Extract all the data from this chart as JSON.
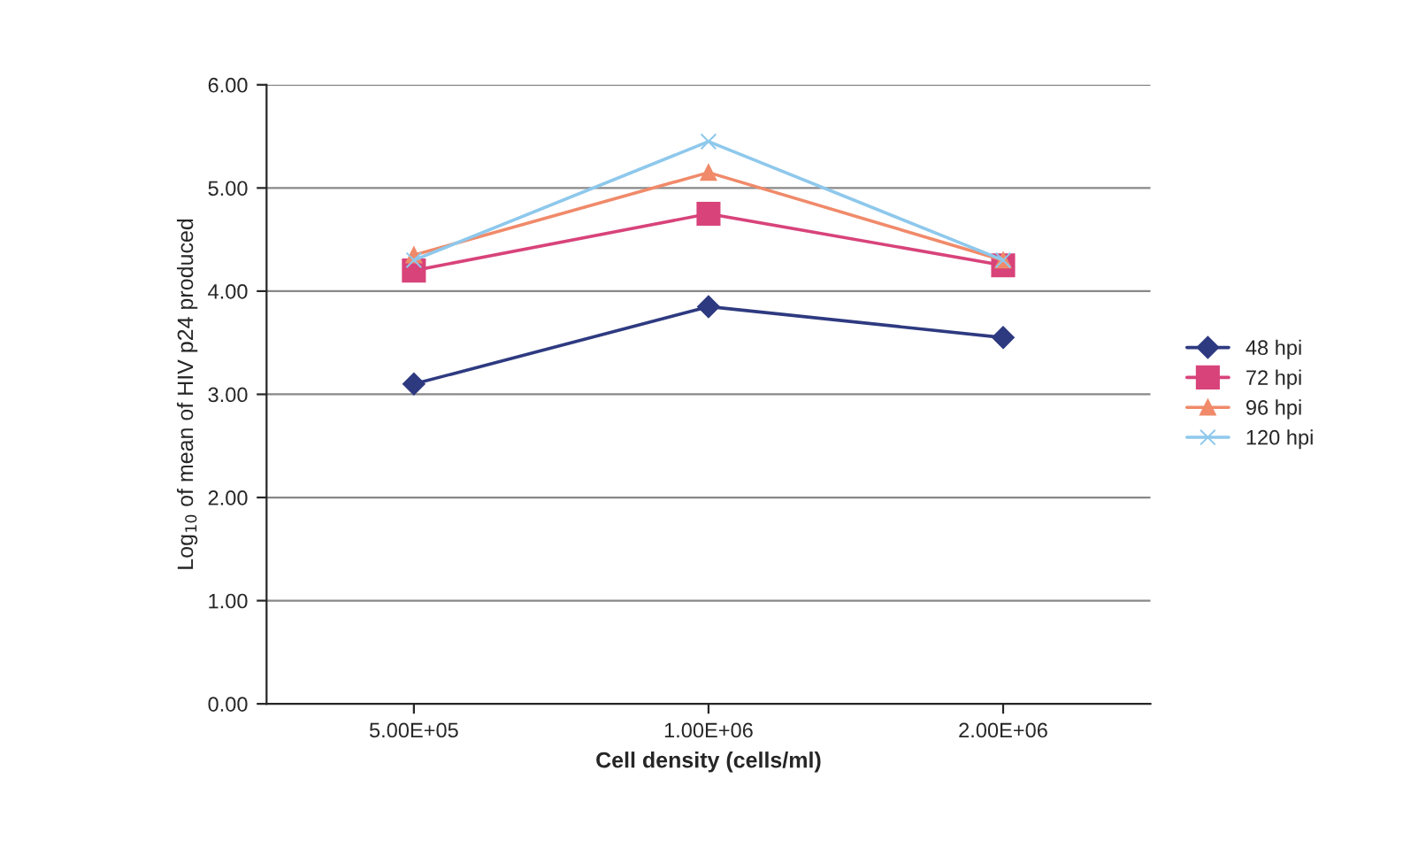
{
  "chart_data": {
    "type": "line",
    "xlabel": "Cell density (cells/ml)",
    "ylabel": "Log$_{10}$ of mean of HIV p24 produced",
    "categories": [
      "5.00E+05",
      "1.00E+06",
      "2.00E+06"
    ],
    "series": [
      {
        "name": "48 hpi",
        "color": "#2e3a80",
        "marker": "diamond",
        "values": [
          3.1,
          3.85,
          3.55
        ]
      },
      {
        "name": "72 hpi",
        "color": "#d8437a",
        "marker": "square",
        "values": [
          4.2,
          4.75,
          4.25
        ]
      },
      {
        "name": "96 hpi",
        "color": "#f08a6a",
        "marker": "triangle",
        "values": [
          4.35,
          5.15,
          4.3
        ]
      },
      {
        "name": "120 hpi",
        "color": "#8ec8ec",
        "marker": "cross",
        "values": [
          4.3,
          5.45,
          4.3
        ]
      }
    ],
    "ylim": [
      0,
      6
    ],
    "yticks": [
      {
        "value": 0,
        "label": "0.00"
      },
      {
        "value": 1,
        "label": "1.00"
      },
      {
        "value": 2,
        "label": "2.00"
      },
      {
        "value": 3,
        "label": "3.00"
      },
      {
        "value": 4,
        "label": "4.00"
      },
      {
        "value": 5,
        "label": "5.00"
      },
      {
        "value": 6,
        "label": "6.00"
      }
    ],
    "grid": "y",
    "legend": "right"
  }
}
